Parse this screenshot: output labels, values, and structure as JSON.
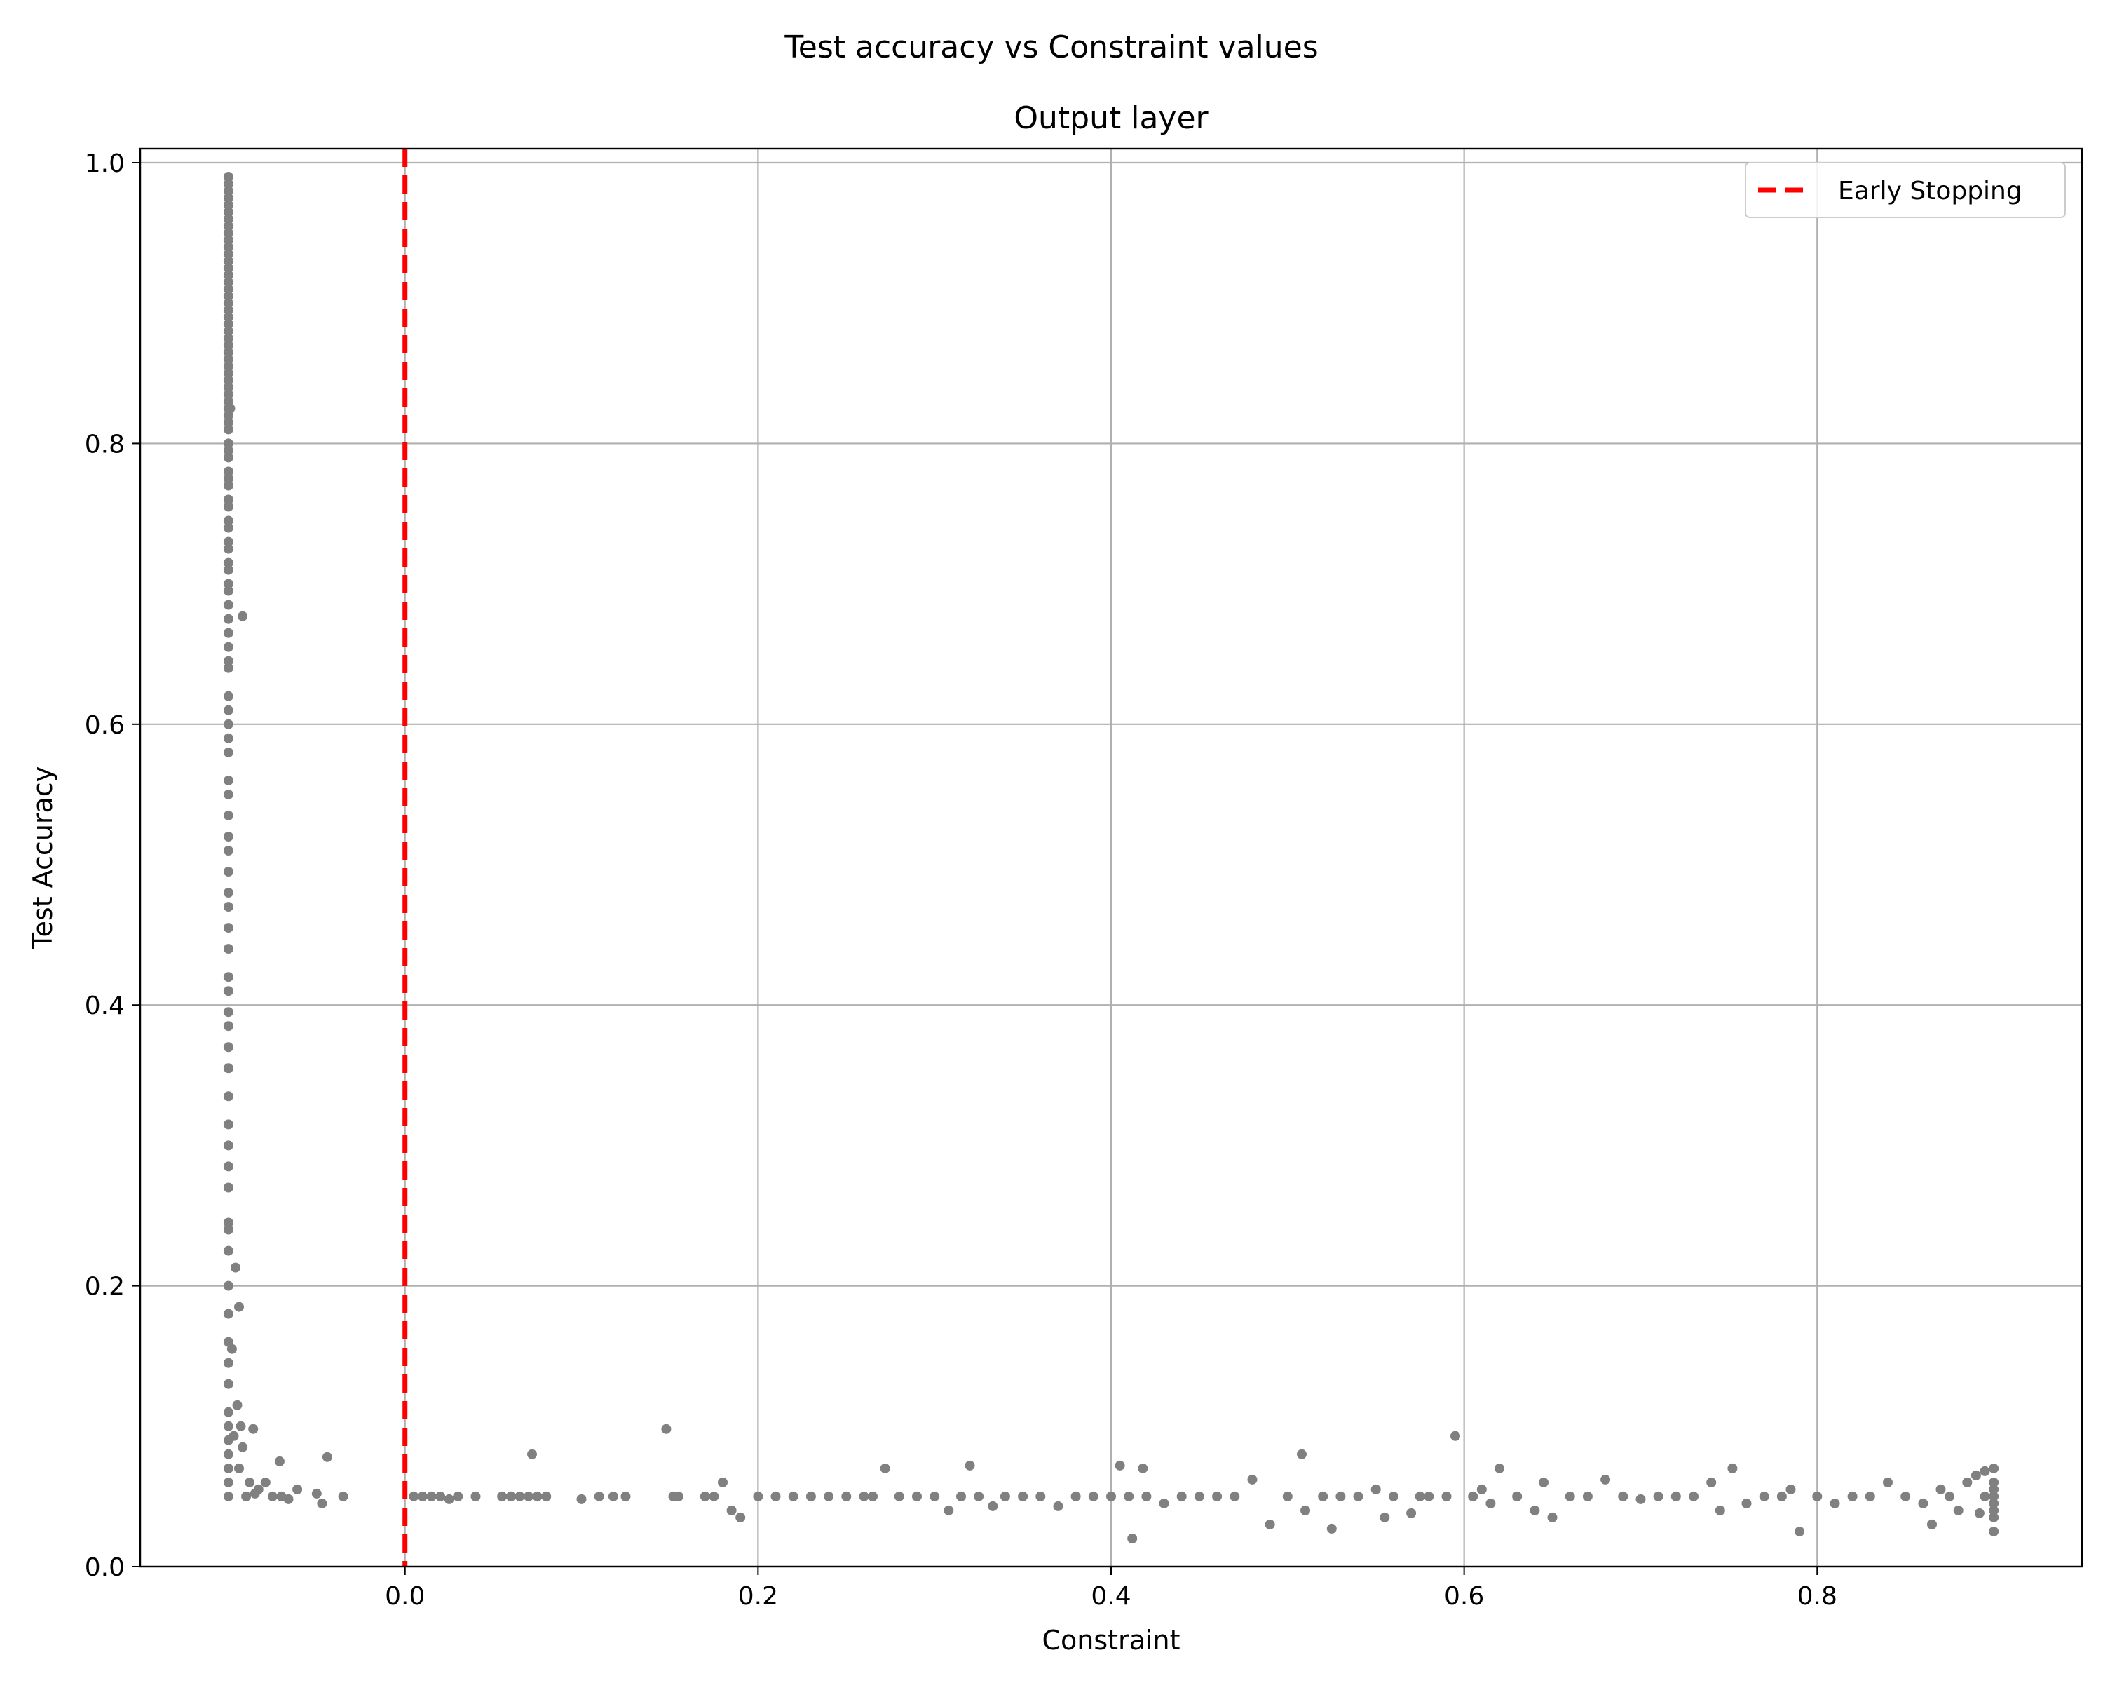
{
  "chart_data": {
    "type": "scatter",
    "suptitle": "Test accuracy vs Constraint values",
    "title": "Output layer",
    "xlabel": "Constraint",
    "ylabel": "Test Accuracy",
    "xlim": [
      -0.15,
      0.95
    ],
    "ylim": [
      0.0,
      1.01
    ],
    "xticks": [
      0.0,
      0.2,
      0.4,
      0.6,
      0.8
    ],
    "xtick_labels": [
      "0.0",
      "0.2",
      "0.4",
      "0.6",
      "0.8"
    ],
    "yticks": [
      0.0,
      0.2,
      0.4,
      0.6,
      0.8,
      1.0
    ],
    "ytick_labels": [
      "0.0",
      "0.2",
      "0.4",
      "0.6",
      "0.8",
      "1.0"
    ],
    "grid": true,
    "legend": {
      "location": "top-right",
      "entries": [
        {
          "label": "Early Stopping",
          "color": "#ff0000",
          "style": "dashed"
        }
      ]
    },
    "vline": {
      "x": 0.0,
      "label": "Early Stopping",
      "color": "#ff0000",
      "style": "dashed"
    },
    "point_color": "#808080",
    "series": [
      {
        "points": [
          [
            -0.1,
            0.99
          ],
          [
            -0.1,
            0.985
          ],
          [
            -0.1,
            0.98
          ],
          [
            -0.1,
            0.975
          ],
          [
            -0.1,
            0.97
          ],
          [
            -0.1,
            0.965
          ],
          [
            -0.1,
            0.96
          ],
          [
            -0.1,
            0.955
          ],
          [
            -0.1,
            0.95
          ],
          [
            -0.1,
            0.945
          ],
          [
            -0.1,
            0.94
          ],
          [
            -0.1,
            0.935
          ],
          [
            -0.1,
            0.93
          ],
          [
            -0.1,
            0.925
          ],
          [
            -0.1,
            0.92
          ],
          [
            -0.1,
            0.915
          ],
          [
            -0.1,
            0.91
          ],
          [
            -0.1,
            0.905
          ],
          [
            -0.1,
            0.9
          ],
          [
            -0.1,
            0.895
          ],
          [
            -0.1,
            0.89
          ],
          [
            -0.1,
            0.885
          ],
          [
            -0.1,
            0.88
          ],
          [
            -0.1,
            0.875
          ],
          [
            -0.1,
            0.87
          ],
          [
            -0.1,
            0.865
          ],
          [
            -0.1,
            0.86
          ],
          [
            -0.1,
            0.855
          ],
          [
            -0.1,
            0.85
          ],
          [
            -0.1,
            0.845
          ],
          [
            -0.1,
            0.84
          ],
          [
            -0.1,
            0.835
          ],
          [
            -0.1,
            0.83
          ],
          [
            -0.1,
            0.825
          ],
          [
            -0.1,
            0.82
          ],
          [
            -0.1,
            0.815
          ],
          [
            -0.1,
            0.81
          ],
          [
            -0.1,
            0.8
          ],
          [
            -0.1,
            0.795
          ],
          [
            -0.1,
            0.79
          ],
          [
            -0.1,
            0.78
          ],
          [
            -0.1,
            0.775
          ],
          [
            -0.1,
            0.77
          ],
          [
            -0.1,
            0.76
          ],
          [
            -0.1,
            0.755
          ],
          [
            -0.1,
            0.745
          ],
          [
            -0.1,
            0.74
          ],
          [
            -0.1,
            0.73
          ],
          [
            -0.1,
            0.725
          ],
          [
            -0.1,
            0.715
          ],
          [
            -0.1,
            0.71
          ],
          [
            -0.1,
            0.7
          ],
          [
            -0.1,
            0.695
          ],
          [
            -0.1,
            0.685
          ],
          [
            -0.1,
            0.675
          ],
          [
            -0.1,
            0.665
          ],
          [
            -0.1,
            0.655
          ],
          [
            -0.1,
            0.645
          ],
          [
            -0.1,
            0.64
          ],
          [
            -0.1,
            0.62
          ],
          [
            -0.1,
            0.61
          ],
          [
            -0.1,
            0.6
          ],
          [
            -0.1,
            0.59
          ],
          [
            -0.1,
            0.58
          ],
          [
            -0.1,
            0.56
          ],
          [
            -0.1,
            0.55
          ],
          [
            -0.1,
            0.535
          ],
          [
            -0.1,
            0.52
          ],
          [
            -0.1,
            0.51
          ],
          [
            -0.1,
            0.495
          ],
          [
            -0.1,
            0.48
          ],
          [
            -0.1,
            0.47
          ],
          [
            -0.1,
            0.455
          ],
          [
            -0.1,
            0.44
          ],
          [
            -0.1,
            0.42
          ],
          [
            -0.1,
            0.41
          ],
          [
            -0.1,
            0.395
          ],
          [
            -0.1,
            0.385
          ],
          [
            -0.1,
            0.37
          ],
          [
            -0.1,
            0.355
          ],
          [
            -0.1,
            0.335
          ],
          [
            -0.1,
            0.315
          ],
          [
            -0.1,
            0.3
          ],
          [
            -0.1,
            0.285
          ],
          [
            -0.1,
            0.27
          ],
          [
            -0.1,
            0.245
          ],
          [
            -0.1,
            0.24
          ],
          [
            -0.1,
            0.225
          ],
          [
            -0.1,
            0.2
          ],
          [
            -0.1,
            0.18
          ],
          [
            -0.1,
            0.16
          ],
          [
            -0.1,
            0.145
          ],
          [
            -0.1,
            0.13
          ],
          [
            -0.1,
            0.11
          ],
          [
            -0.1,
            0.1
          ],
          [
            -0.1,
            0.09
          ],
          [
            -0.1,
            0.08
          ],
          [
            -0.1,
            0.07
          ],
          [
            -0.1,
            0.06
          ],
          [
            -0.1,
            0.05
          ],
          [
            -0.099,
            0.825
          ],
          [
            -0.092,
            0.677
          ],
          [
            -0.096,
            0.213
          ],
          [
            -0.094,
            0.185
          ],
          [
            -0.098,
            0.155
          ],
          [
            -0.095,
            0.115
          ],
          [
            -0.093,
            0.1
          ],
          [
            -0.097,
            0.093
          ],
          [
            -0.086,
            0.098
          ],
          [
            -0.092,
            0.085
          ],
          [
            -0.094,
            0.07
          ],
          [
            -0.088,
            0.06
          ],
          [
            -0.083,
            0.055
          ],
          [
            -0.079,
            0.06
          ],
          [
            -0.071,
            0.075
          ],
          [
            -0.066,
            0.048
          ],
          [
            -0.061,
            0.055
          ],
          [
            -0.044,
            0.078
          ],
          [
            -0.05,
            0.052
          ],
          [
            -0.047,
            0.045
          ],
          [
            -0.035,
            0.05
          ],
          [
            -0.09,
            0.05
          ],
          [
            -0.085,
            0.052
          ],
          [
            -0.075,
            0.05
          ],
          [
            -0.07,
            0.05
          ],
          [
            0.005,
            0.05
          ],
          [
            0.01,
            0.05
          ],
          [
            0.015,
            0.05
          ],
          [
            0.02,
            0.05
          ],
          [
            0.025,
            0.048
          ],
          [
            0.03,
            0.05
          ],
          [
            0.04,
            0.05
          ],
          [
            0.055,
            0.05
          ],
          [
            0.06,
            0.05
          ],
          [
            0.065,
            0.05
          ],
          [
            0.07,
            0.05
          ],
          [
            0.072,
            0.08
          ],
          [
            0.075,
            0.05
          ],
          [
            0.08,
            0.05
          ],
          [
            0.1,
            0.048
          ],
          [
            0.11,
            0.05
          ],
          [
            0.118,
            0.05
          ],
          [
            0.125,
            0.05
          ],
          [
            0.148,
            0.098
          ],
          [
            0.152,
            0.05
          ],
          [
            0.155,
            0.05
          ],
          [
            0.17,
            0.05
          ],
          [
            0.175,
            0.05
          ],
          [
            0.18,
            0.06
          ],
          [
            0.185,
            0.04
          ],
          [
            0.19,
            0.035
          ],
          [
            0.2,
            0.05
          ],
          [
            0.21,
            0.05
          ],
          [
            0.22,
            0.05
          ],
          [
            0.23,
            0.05
          ],
          [
            0.24,
            0.05
          ],
          [
            0.25,
            0.05
          ],
          [
            0.26,
            0.05
          ],
          [
            0.265,
            0.05
          ],
          [
            0.272,
            0.07
          ],
          [
            0.28,
            0.05
          ],
          [
            0.29,
            0.05
          ],
          [
            0.3,
            0.05
          ],
          [
            0.308,
            0.04
          ],
          [
            0.315,
            0.05
          ],
          [
            0.32,
            0.072
          ],
          [
            0.325,
            0.05
          ],
          [
            0.333,
            0.043
          ],
          [
            0.34,
            0.05
          ],
          [
            0.35,
            0.05
          ],
          [
            0.36,
            0.05
          ],
          [
            0.37,
            0.043
          ],
          [
            0.38,
            0.05
          ],
          [
            0.39,
            0.05
          ],
          [
            0.4,
            0.05
          ],
          [
            0.405,
            0.072
          ],
          [
            0.41,
            0.05
          ],
          [
            0.412,
            0.02
          ],
          [
            0.418,
            0.07
          ],
          [
            0.42,
            0.05
          ],
          [
            0.43,
            0.045
          ],
          [
            0.44,
            0.05
          ],
          [
            0.45,
            0.05
          ],
          [
            0.46,
            0.05
          ],
          [
            0.47,
            0.05
          ],
          [
            0.48,
            0.062
          ],
          [
            0.49,
            0.03
          ],
          [
            0.5,
            0.05
          ],
          [
            0.508,
            0.08
          ],
          [
            0.51,
            0.04
          ],
          [
            0.52,
            0.05
          ],
          [
            0.525,
            0.027
          ],
          [
            0.53,
            0.05
          ],
          [
            0.54,
            0.05
          ],
          [
            0.55,
            0.055
          ],
          [
            0.555,
            0.035
          ],
          [
            0.56,
            0.05
          ],
          [
            0.57,
            0.038
          ],
          [
            0.575,
            0.05
          ],
          [
            0.58,
            0.05
          ],
          [
            0.59,
            0.05
          ],
          [
            0.595,
            0.093
          ],
          [
            0.605,
            0.05
          ],
          [
            0.61,
            0.055
          ],
          [
            0.615,
            0.045
          ],
          [
            0.62,
            0.07
          ],
          [
            0.63,
            0.05
          ],
          [
            0.64,
            0.04
          ],
          [
            0.645,
            0.06
          ],
          [
            0.65,
            0.035
          ],
          [
            0.66,
            0.05
          ],
          [
            0.67,
            0.05
          ],
          [
            0.68,
            0.062
          ],
          [
            0.69,
            0.05
          ],
          [
            0.7,
            0.048
          ],
          [
            0.71,
            0.05
          ],
          [
            0.72,
            0.05
          ],
          [
            0.73,
            0.05
          ],
          [
            0.74,
            0.06
          ],
          [
            0.745,
            0.04
          ],
          [
            0.752,
            0.07
          ],
          [
            0.76,
            0.045
          ],
          [
            0.77,
            0.05
          ],
          [
            0.78,
            0.05
          ],
          [
            0.785,
            0.055
          ],
          [
            0.79,
            0.025
          ],
          [
            0.8,
            0.05
          ],
          [
            0.81,
            0.045
          ],
          [
            0.82,
            0.05
          ],
          [
            0.83,
            0.05
          ],
          [
            0.84,
            0.06
          ],
          [
            0.85,
            0.05
          ],
          [
            0.86,
            0.045
          ],
          [
            0.865,
            0.03
          ],
          [
            0.87,
            0.055
          ],
          [
            0.875,
            0.05
          ],
          [
            0.88,
            0.04
          ],
          [
            0.885,
            0.06
          ],
          [
            0.89,
            0.065
          ],
          [
            0.895,
            0.05
          ],
          [
            0.9,
            0.05
          ],
          [
            0.9,
            0.045
          ],
          [
            0.9,
            0.055
          ],
          [
            0.9,
            0.06
          ],
          [
            0.9,
            0.07
          ],
          [
            0.9,
            0.04
          ],
          [
            0.9,
            0.035
          ],
          [
            0.9,
            0.025
          ],
          [
            0.895,
            0.068
          ],
          [
            0.892,
            0.038
          ]
        ]
      }
    ]
  }
}
